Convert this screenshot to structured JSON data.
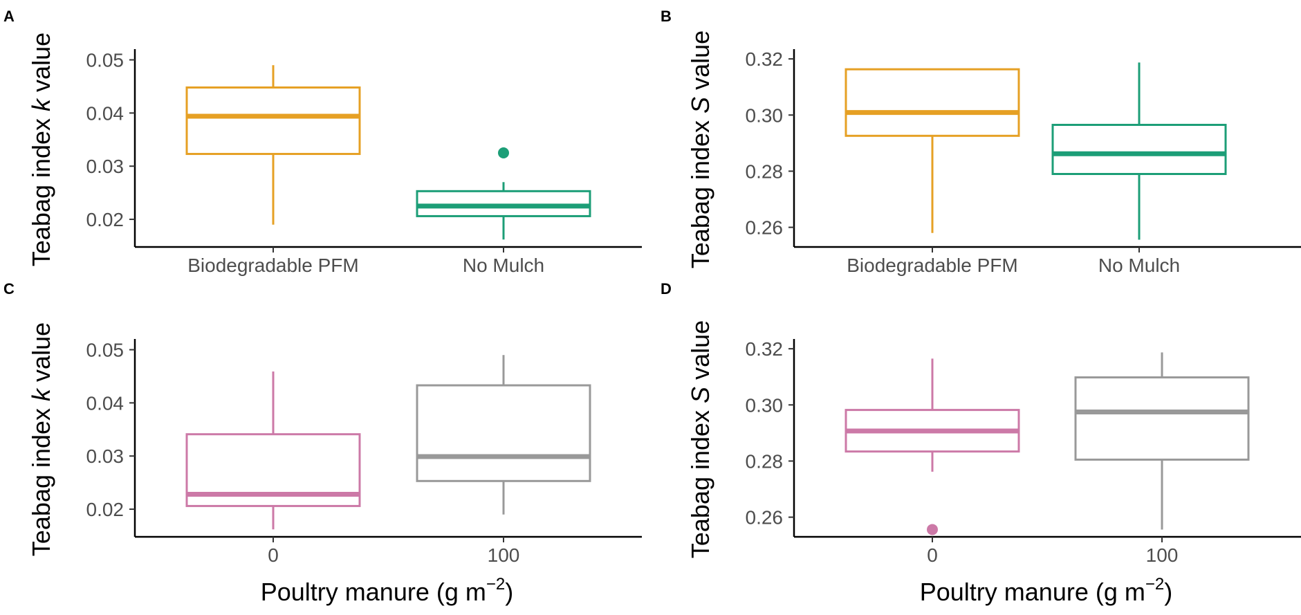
{
  "chart_data": [
    {
      "panel": "A",
      "type": "box",
      "categories": [
        "Biodegradable PFM",
        "No Mulch"
      ],
      "colors": [
        "#E6A024",
        "#1C9E77"
      ],
      "ylabel_prefix": "Teabag index ",
      "ylabel_var": "k",
      "ylabel_suffix": " value",
      "xlabel": "",
      "ylim": [
        0.0148,
        0.0515
      ],
      "yticks": [
        0.02,
        0.03,
        0.04,
        0.05
      ],
      "ytick_labels": [
        "0.02",
        "0.03",
        "0.04",
        "0.05"
      ],
      "boxes": [
        {
          "whisker_low": 0.019,
          "q1": 0.0323,
          "median": 0.0394,
          "q3": 0.0448,
          "whisker_high": 0.049,
          "outliers": []
        },
        {
          "whisker_low": 0.0162,
          "q1": 0.0206,
          "median": 0.0225,
          "q3": 0.0253,
          "whisker_high": 0.027,
          "outliers": [
            0.0325
          ]
        }
      ]
    },
    {
      "panel": "B",
      "type": "box",
      "categories": [
        "Biodegradable PFM",
        "No Mulch"
      ],
      "colors": [
        "#E6A024",
        "#1C9E77"
      ],
      "ylabel_prefix": "Teabag index ",
      "ylabel_var": "S",
      "ylabel_suffix": " value",
      "xlabel": "",
      "ylim": [
        0.253,
        0.3225
      ],
      "yticks": [
        0.26,
        0.28,
        0.3,
        0.32
      ],
      "ytick_labels": [
        "0.26",
        "0.28",
        "0.30",
        "0.32"
      ],
      "boxes": [
        {
          "whisker_low": 0.258,
          "q1": 0.2926,
          "median": 0.3009,
          "q3": 0.3163,
          "whisker_high": 0.3165,
          "outliers": []
        },
        {
          "whisker_low": 0.2556,
          "q1": 0.279,
          "median": 0.2862,
          "q3": 0.2965,
          "whisker_high": 0.3187,
          "outliers": []
        }
      ]
    },
    {
      "panel": "C",
      "type": "box",
      "categories": [
        "0",
        "100"
      ],
      "colors": [
        "#CC79A7",
        "#999999"
      ],
      "ylabel_prefix": "Teabag index ",
      "ylabel_var": "k",
      "ylabel_suffix": " value",
      "xlabel_base": "Poultry manure (g  m",
      "xlabel_sup": "−2",
      "xlabel_end": ")",
      "ylim": [
        0.0148,
        0.0515
      ],
      "yticks": [
        0.02,
        0.03,
        0.04,
        0.05
      ],
      "ytick_labels": [
        "0.02",
        "0.03",
        "0.04",
        "0.05"
      ],
      "boxes": [
        {
          "whisker_low": 0.0162,
          "q1": 0.0206,
          "median": 0.0228,
          "q3": 0.0341,
          "whisker_high": 0.0459,
          "outliers": []
        },
        {
          "whisker_low": 0.019,
          "q1": 0.0253,
          "median": 0.0299,
          "q3": 0.0433,
          "whisker_high": 0.049,
          "outliers": []
        }
      ]
    },
    {
      "panel": "D",
      "type": "box",
      "categories": [
        "0",
        "100"
      ],
      "colors": [
        "#CC79A7",
        "#999999"
      ],
      "ylabel_prefix": "Teabag index ",
      "ylabel_var": "S",
      "ylabel_suffix": " value",
      "xlabel_base": "Poultry manure (g  m",
      "xlabel_sup": "−2",
      "xlabel_end": ")",
      "ylim": [
        0.253,
        0.3225
      ],
      "yticks": [
        0.26,
        0.28,
        0.3,
        0.32
      ],
      "ytick_labels": [
        "0.26",
        "0.28",
        "0.30",
        "0.32"
      ],
      "boxes": [
        {
          "whisker_low": 0.2762,
          "q1": 0.2834,
          "median": 0.2907,
          "q3": 0.2982,
          "whisker_high": 0.3165,
          "outliers": [
            0.2556
          ]
        },
        {
          "whisker_low": 0.2556,
          "q1": 0.2805,
          "median": 0.2975,
          "q3": 0.3098,
          "whisker_high": 0.3187,
          "outliers": []
        }
      ]
    }
  ]
}
